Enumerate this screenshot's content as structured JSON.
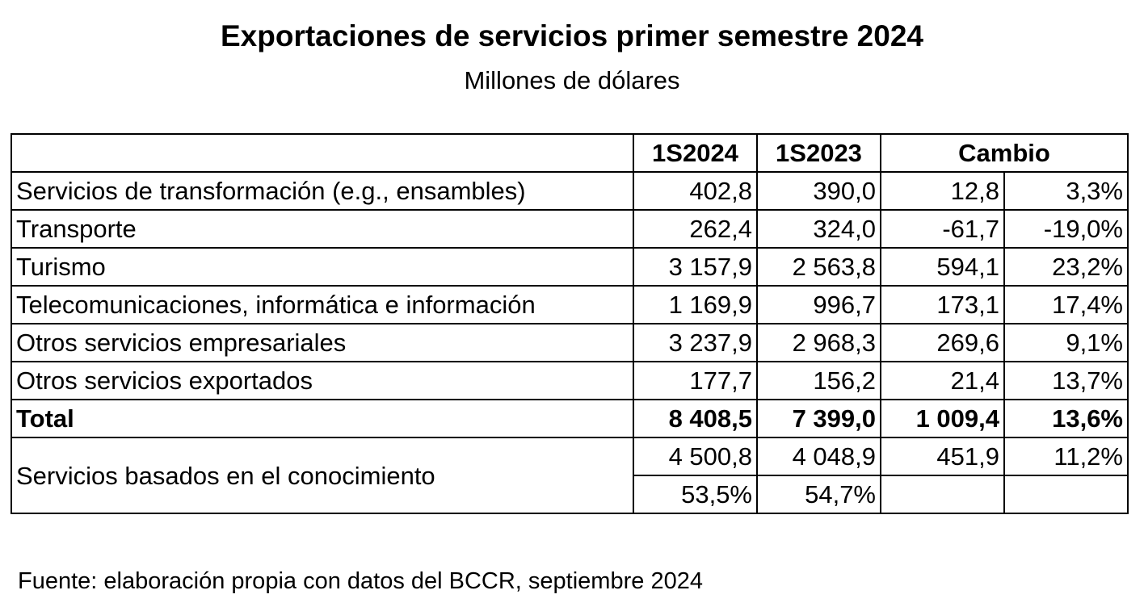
{
  "title": "Exportaciones de servicios primer semestre 2024",
  "subtitle": "Millones de dólares",
  "table": {
    "headers": {
      "col1": "1S2024",
      "col2": "1S2023",
      "change": "Cambio"
    },
    "rows": [
      {
        "label": "Servicios de transformación (e.g., ensambles)",
        "v2024": "402,8",
        "v2023": "390,0",
        "abs": "12,8",
        "pct": "3,3%"
      },
      {
        "label": "Transporte",
        "v2024": "262,4",
        "v2023": "324,0",
        "abs": "-61,7",
        "pct": "-19,0%"
      },
      {
        "label": "Turismo",
        "v2024": "3 157,9",
        "v2023": "2 563,8",
        "abs": "594,1",
        "pct": "23,2%"
      },
      {
        "label": "Telecomunicaciones, informática e información",
        "v2024": "1 169,9",
        "v2023": "996,7",
        "abs": "173,1",
        "pct": "17,4%"
      },
      {
        "label": "Otros servicios empresariales",
        "v2024": "3 237,9",
        "v2023": "2 968,3",
        "abs": "269,6",
        "pct": "9,1%"
      },
      {
        "label": "Otros servicios exportados",
        "v2024": "177,7",
        "v2023": "156,2",
        "abs": "21,4",
        "pct": "13,7%"
      }
    ],
    "total": {
      "label": "Total",
      "v2024": "8 408,5",
      "v2023": "7 399,0",
      "abs": "1 009,4",
      "pct": "13,6%"
    },
    "knowledge": {
      "label": "Servicios basados en el conocimiento",
      "v2024": "4 500,8",
      "v2023": "4 048,9",
      "abs": "451,9",
      "pct": "11,2%",
      "share2024": "53,5%",
      "share2023": "54,7%"
    }
  },
  "source": "Fuente: elaboración propia con datos del BCCR, septiembre 2024"
}
